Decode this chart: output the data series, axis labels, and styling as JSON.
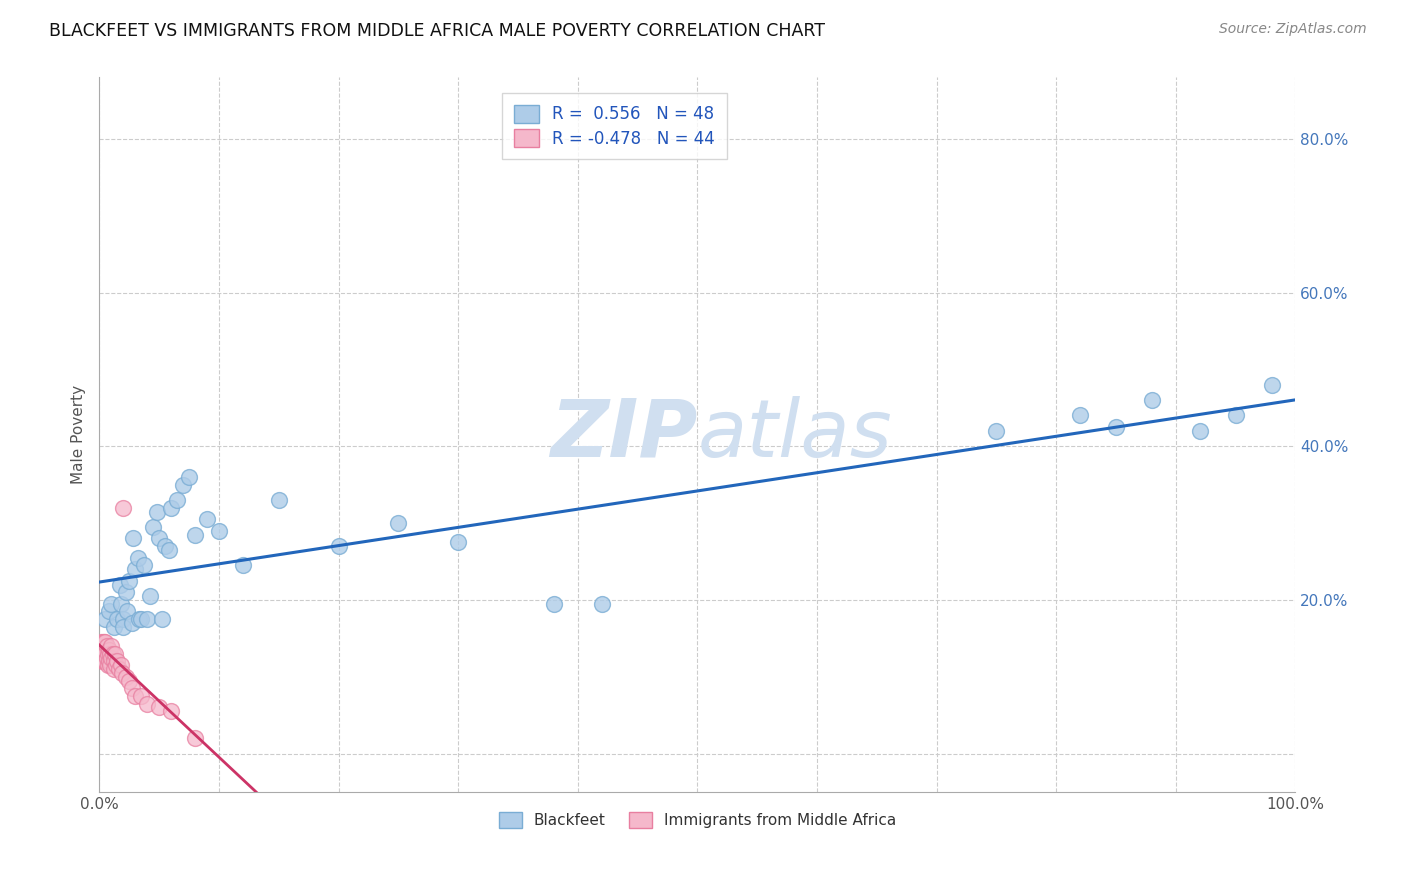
{
  "title": "BLACKFEET VS IMMIGRANTS FROM MIDDLE AFRICA MALE POVERTY CORRELATION CHART",
  "source": "Source: ZipAtlas.com",
  "xlabel": "",
  "ylabel": "Male Poverty",
  "x_min": 0.0,
  "x_max": 1.0,
  "y_min": -0.05,
  "y_max": 0.88,
  "x_ticks": [
    0.0,
    0.1,
    0.2,
    0.3,
    0.4,
    0.5,
    0.6,
    0.7,
    0.8,
    0.9,
    1.0
  ],
  "y_ticks": [
    0.0,
    0.2,
    0.4,
    0.6,
    0.8
  ],
  "blackfeet_R": 0.556,
  "blackfeet_N": 48,
  "immigrants_R": -0.478,
  "immigrants_N": 44,
  "blackfeet_color": "#7aadd4",
  "blackfeet_fill": "#aecce8",
  "immigrants_color": "#e87fa0",
  "immigrants_fill": "#f5b8cb",
  "blue_line_color": "#2266bb",
  "pink_line_color": "#cc3366",
  "watermark_color": "#d0dff0",
  "background_color": "#ffffff",
  "grid_color": "#cccccc",
  "blackfeet_x": [
    0.005,
    0.008,
    0.01,
    0.012,
    0.015,
    0.017,
    0.018,
    0.02,
    0.02,
    0.022,
    0.023,
    0.025,
    0.027,
    0.028,
    0.03,
    0.032,
    0.033,
    0.035,
    0.037,
    0.04,
    0.042,
    0.045,
    0.048,
    0.05,
    0.052,
    0.055,
    0.058,
    0.06,
    0.065,
    0.07,
    0.075,
    0.08,
    0.09,
    0.1,
    0.12,
    0.15,
    0.2,
    0.25,
    0.3,
    0.38,
    0.42,
    0.75,
    0.82,
    0.85,
    0.88,
    0.92,
    0.95,
    0.98
  ],
  "blackfeet_y": [
    0.175,
    0.185,
    0.195,
    0.165,
    0.175,
    0.22,
    0.195,
    0.175,
    0.165,
    0.21,
    0.185,
    0.225,
    0.17,
    0.28,
    0.24,
    0.255,
    0.175,
    0.175,
    0.245,
    0.175,
    0.205,
    0.295,
    0.315,
    0.28,
    0.175,
    0.27,
    0.265,
    0.32,
    0.33,
    0.35,
    0.36,
    0.285,
    0.305,
    0.29,
    0.245,
    0.33,
    0.27,
    0.3,
    0.275,
    0.195,
    0.195,
    0.42,
    0.44,
    0.425,
    0.46,
    0.42,
    0.44,
    0.48
  ],
  "immigrants_x": [
    0.001,
    0.001,
    0.001,
    0.002,
    0.002,
    0.002,
    0.003,
    0.003,
    0.003,
    0.004,
    0.004,
    0.004,
    0.005,
    0.005,
    0.005,
    0.006,
    0.006,
    0.007,
    0.007,
    0.008,
    0.008,
    0.009,
    0.009,
    0.01,
    0.01,
    0.011,
    0.012,
    0.012,
    0.013,
    0.014,
    0.015,
    0.016,
    0.018,
    0.019,
    0.02,
    0.022,
    0.025,
    0.027,
    0.03,
    0.035,
    0.04,
    0.05,
    0.06,
    0.08
  ],
  "immigrants_y": [
    0.145,
    0.135,
    0.125,
    0.14,
    0.13,
    0.12,
    0.145,
    0.135,
    0.125,
    0.145,
    0.13,
    0.12,
    0.145,
    0.13,
    0.12,
    0.14,
    0.125,
    0.13,
    0.115,
    0.135,
    0.12,
    0.13,
    0.115,
    0.14,
    0.125,
    0.13,
    0.12,
    0.11,
    0.13,
    0.115,
    0.12,
    0.11,
    0.115,
    0.105,
    0.32,
    0.1,
    0.095,
    0.085,
    0.075,
    0.075,
    0.065,
    0.06,
    0.055,
    0.02
  ]
}
